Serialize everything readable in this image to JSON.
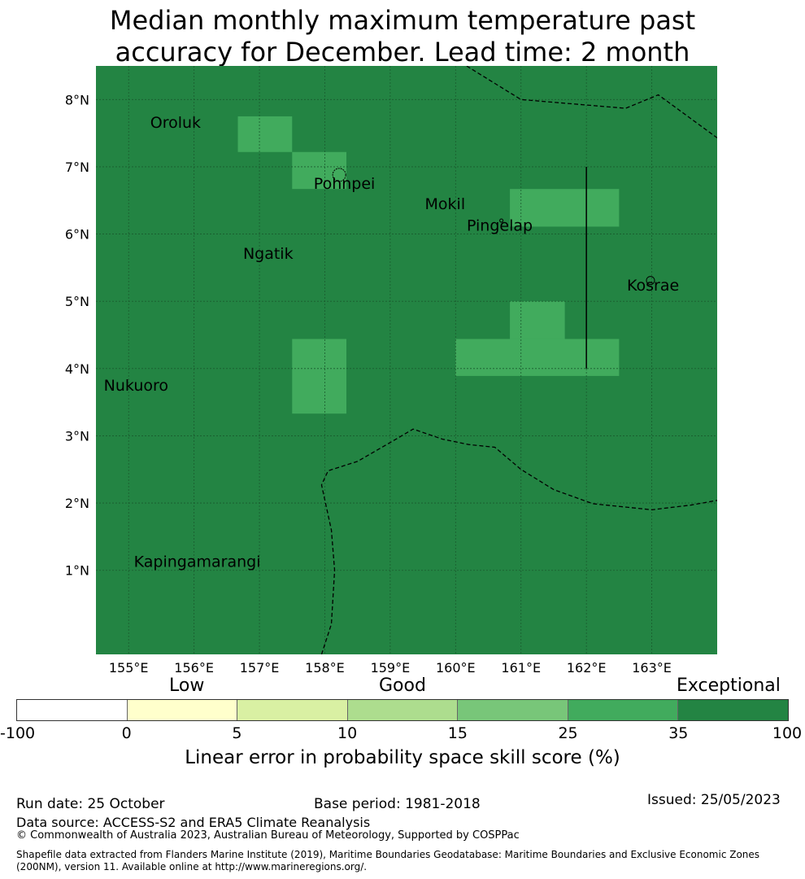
{
  "title": {
    "line1": "Median monthly maximum temperature past",
    "line2": "accuracy for December. Lead time: 2 month"
  },
  "map": {
    "lon_range": [
      154.5,
      164.0
    ],
    "lat_range": [
      -0.25,
      8.5
    ],
    "lon_ticks": [
      {
        "value": 155,
        "label": "155°E"
      },
      {
        "value": 156,
        "label": "156°E"
      },
      {
        "value": 157,
        "label": "157°E"
      },
      {
        "value": 158,
        "label": "158°E"
      },
      {
        "value": 159,
        "label": "159°E"
      },
      {
        "value": 160,
        "label": "160°E"
      },
      {
        "value": 161,
        "label": "161°E"
      },
      {
        "value": 162,
        "label": "162°E"
      },
      {
        "value": 163,
        "label": "163°E"
      }
    ],
    "lat_ticks": [
      {
        "value": 1,
        "label": "1°N"
      },
      {
        "value": 2,
        "label": "2°N"
      },
      {
        "value": 3,
        "label": "3°N"
      },
      {
        "value": 4,
        "label": "4°N"
      },
      {
        "value": 5,
        "label": "5°N"
      },
      {
        "value": 6,
        "label": "6°N"
      },
      {
        "value": 7,
        "label": "7°N"
      },
      {
        "value": 8,
        "label": "8°N"
      }
    ],
    "background_color": "#238443",
    "cell_color": "#41ab5d",
    "cells": [
      {
        "lon": [
          156.67,
          157.5
        ],
        "lat": [
          7.22,
          7.75
        ]
      },
      {
        "lon": [
          157.5,
          158.33
        ],
        "lat": [
          6.67,
          7.22
        ]
      },
      {
        "lon": [
          160.83,
          162.5
        ],
        "lat": [
          6.11,
          6.67
        ]
      },
      {
        "lon": [
          160.83,
          161.67
        ],
        "lat": [
          4.44,
          5.0
        ]
      },
      {
        "lon": [
          160.0,
          162.5
        ],
        "lat": [
          3.89,
          4.44
        ]
      },
      {
        "lon": [
          157.5,
          158.33
        ],
        "lat": [
          3.33,
          4.44
        ]
      }
    ],
    "places": [
      {
        "name": "Oroluk",
        "lon": 155.33,
        "lat": 7.58
      },
      {
        "name": "Pohnpei",
        "lon": 157.83,
        "lat": 6.67
      },
      {
        "name": "Mokil",
        "lon": 159.53,
        "lat": 6.37
      },
      {
        "name": "Pingelap",
        "lon": 160.17,
        "lat": 6.05
      },
      {
        "name": "Ngatik",
        "lon": 156.75,
        "lat": 5.63
      },
      {
        "name": "Kosrae",
        "lon": 162.62,
        "lat": 5.16
      },
      {
        "name": "Nukuoro",
        "lon": 154.62,
        "lat": 3.67
      },
      {
        "name": "Kapingamarangi",
        "lon": 155.08,
        "lat": 1.05
      }
    ],
    "boundaries": [
      [
        [
          160.0,
          8.6
        ],
        [
          161.0,
          8.0
        ],
        [
          162.6,
          7.87
        ],
        [
          163.1,
          8.07
        ],
        [
          164.0,
          7.43
        ]
      ],
      [
        [
          157.95,
          -0.25
        ],
        [
          158.1,
          0.2
        ],
        [
          158.15,
          1.0
        ],
        [
          158.1,
          1.6
        ],
        [
          157.95,
          2.27
        ],
        [
          158.05,
          2.48
        ],
        [
          158.5,
          2.62
        ],
        [
          159.0,
          2.9
        ],
        [
          159.35,
          3.1
        ],
        [
          159.8,
          2.95
        ],
        [
          160.2,
          2.87
        ],
        [
          160.6,
          2.83
        ],
        [
          161.0,
          2.5
        ],
        [
          161.5,
          2.2
        ],
        [
          162.1,
          1.99
        ],
        [
          163.0,
          1.9
        ],
        [
          163.6,
          1.97
        ],
        [
          164.0,
          2.04
        ]
      ]
    ],
    "line_segment": [
      [
        162.0,
        7.0
      ],
      [
        162.0,
        4.0
      ]
    ],
    "islands": [
      {
        "lon": 158.22,
        "lat": 6.88
      },
      {
        "lon": 162.98,
        "lat": 5.31
      },
      {
        "lon": 160.7,
        "lat": 6.2
      }
    ]
  },
  "legend": {
    "categories": [
      {
        "label": "Low"
      },
      {
        "label": "Good"
      },
      {
        "label": "Exceptional"
      }
    ],
    "colors": [
      "#ffffff",
      "#ffffcc",
      "#d9f0a3",
      "#addd8e",
      "#78c679",
      "#41ab5d",
      "#238443"
    ],
    "ticks": [
      "-100",
      "0",
      "5",
      "10",
      "15",
      "25",
      "35",
      "100"
    ],
    "label": "Linear error in probability space skill score (%)"
  },
  "footer": {
    "run_date": "Run date: 25 October",
    "base_period": "Base period: 1981-2018",
    "issued": "Issued: 25/05/2023",
    "data_source": "Data source: ACCESS-S2 and ERA5 Climate Reanalysis",
    "copyright": "© Commonwealth of Australia 2023, Australian Bureau of Meteorology, Supported by COSPPac",
    "shapefile_line1": "Shapefile data extracted from Flanders Marine Institute (2019), Maritime Boundaries Geodatabase: Maritime Boundaries and Exclusive Economic Zones",
    "shapefile_line2": "(200NM), version 11. Available online at http://www.marineregions.org/."
  }
}
